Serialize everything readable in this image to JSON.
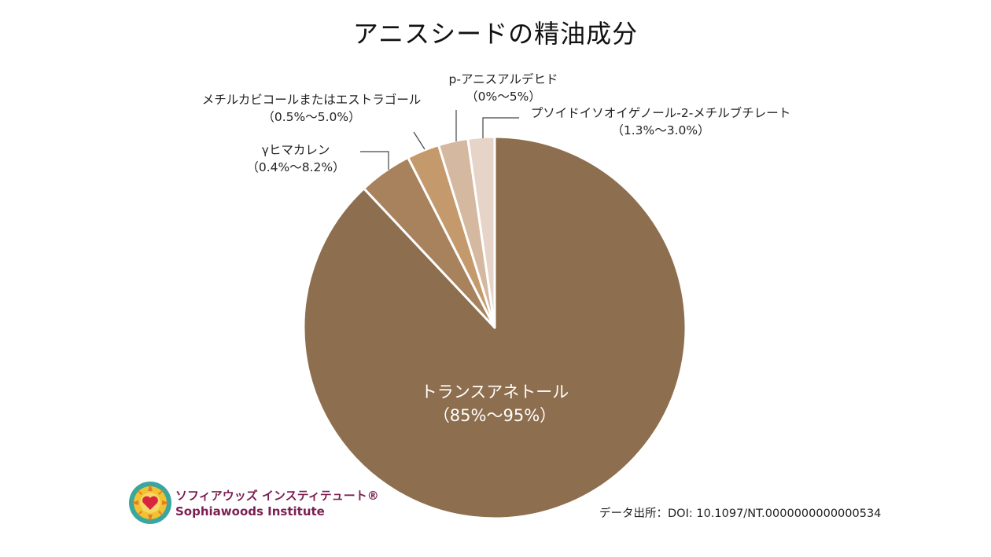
{
  "title": "アニスシードの精油成分",
  "chart_data": {
    "type": "pie",
    "title": "アニスシードの精油成分",
    "slices": [
      {
        "name": "トランスアネトール",
        "range": "（85%～95%）",
        "value": 88.0,
        "color": "#8d6e4e"
      },
      {
        "name": "γヒマカレン",
        "range": "（0.4%～8.2%）",
        "value": 4.5,
        "color": "#a8815d"
      },
      {
        "name": "メチルカビコールまたはエストラゴール",
        "range": "（0.5%～5.0%）",
        "value": 2.75,
        "color": "#c49a6c"
      },
      {
        "name": "p-アニスアルデヒド",
        "range": "（0%～5%）",
        "value": 2.5,
        "color": "#d4b89f"
      },
      {
        "name": "プソイドイソオイゲノール-2-メチルブチレート",
        "range": "（1.3%～3.0%）",
        "value": 2.25,
        "color": "#e5d4c7"
      }
    ]
  },
  "source": "データ出所：DOI: 10.1097/NT.0000000000000534",
  "logo": {
    "jp": "ソフィアウッズ インスティテュート®",
    "en": "Sophiawoods Institute"
  }
}
